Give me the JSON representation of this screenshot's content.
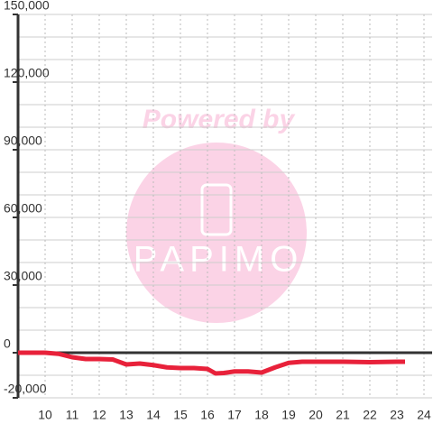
{
  "chart_data": {
    "type": "line",
    "watermark": {
      "text": "Powered by",
      "brand": "PAPIMO"
    },
    "x": [
      9,
      10,
      10.5,
      11,
      11.5,
      12,
      12.5,
      13,
      13.5,
      14,
      14.5,
      15,
      15.5,
      16,
      16.3,
      16.6,
      17,
      17.5,
      18,
      18.5,
      19,
      19.5,
      20,
      21,
      22,
      23,
      23.3
    ],
    "series": [
      {
        "color": "#e8213a",
        "values": [
          0,
          0,
          -500,
          -2000,
          -2800,
          -2800,
          -3000,
          -5200,
          -4800,
          -5500,
          -6500,
          -6800,
          -6800,
          -7200,
          -9200,
          -9000,
          -8300,
          -8300,
          -8800,
          -6500,
          -4500,
          -4000,
          -4000,
          -4000,
          -4200,
          -4000,
          -4000
        ]
      }
    ],
    "xlim": [
      9,
      24.3
    ],
    "xticks": [
      10,
      11,
      12,
      13,
      14,
      15,
      16,
      17,
      18,
      19,
      20,
      21,
      22,
      23,
      24
    ],
    "ylim": [
      -20000,
      150000
    ],
    "yticks": [
      {
        "value": -20000,
        "label": "-20,000"
      },
      0,
      {
        "value": 30000,
        "label": "30,000"
      },
      {
        "value": 60000,
        "label": "60,000"
      },
      {
        "value": 90000,
        "label": "90,000"
      },
      {
        "value": 120000,
        "label": "120,000"
      },
      {
        "value": 150000,
        "label": "150,000"
      }
    ],
    "minor_yticks": [
      -10000,
      10000,
      20000,
      40000,
      50000,
      70000,
      80000,
      100000,
      110000,
      130000,
      140000
    ],
    "grid": true
  }
}
